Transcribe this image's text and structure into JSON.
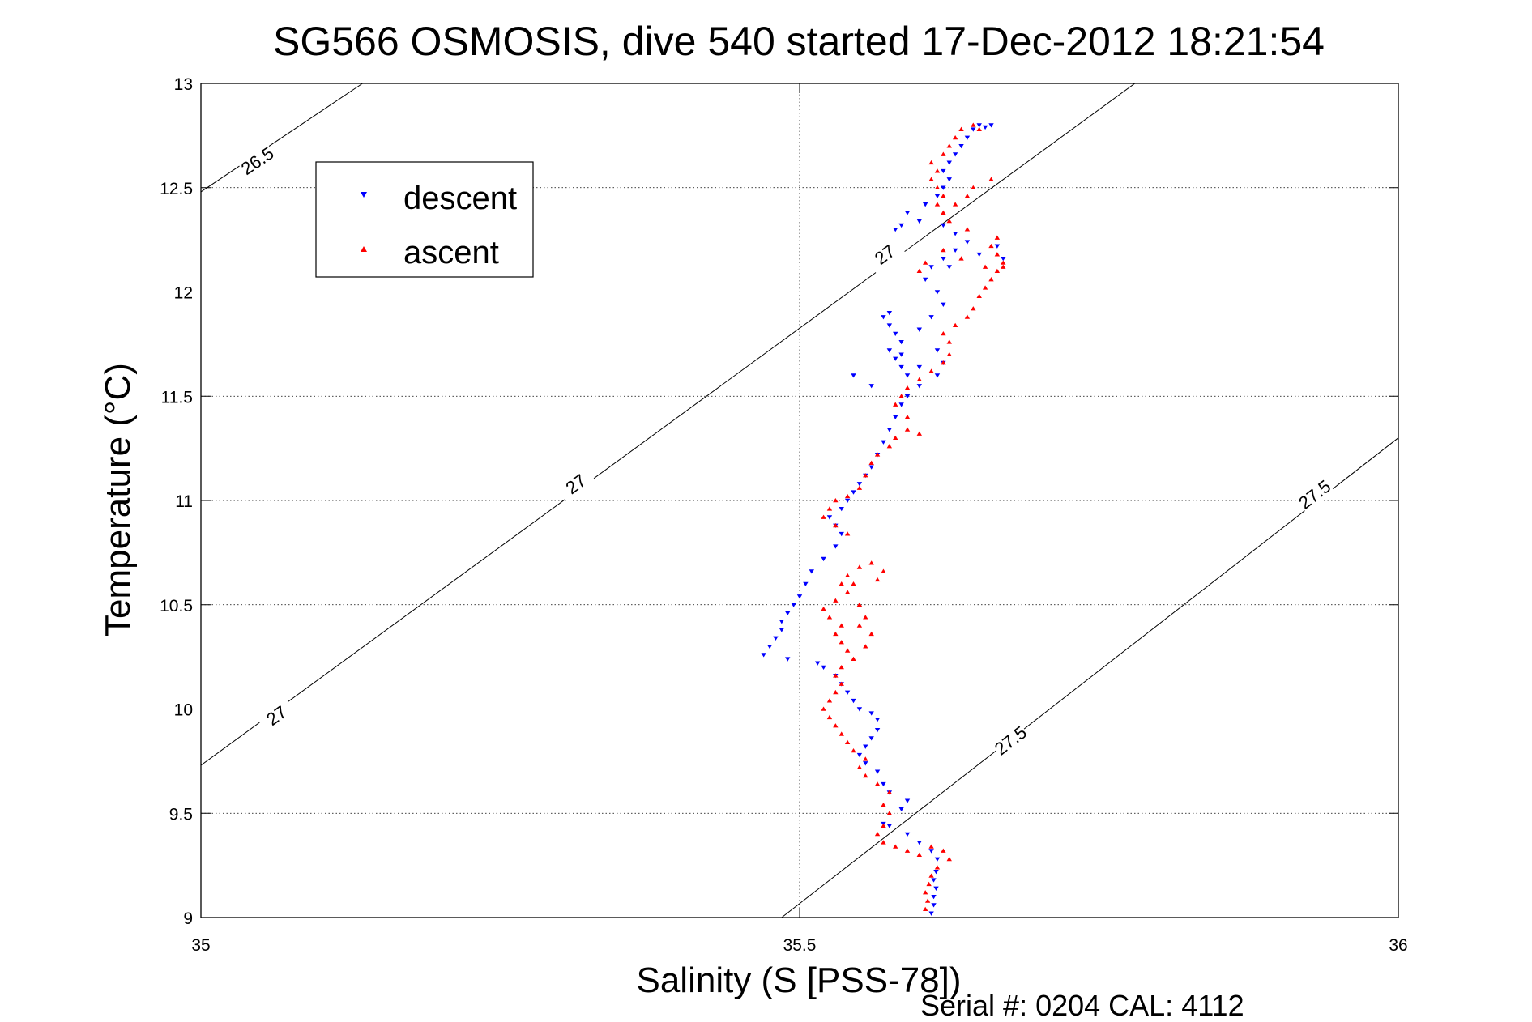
{
  "chart_data": {
    "type": "scatter",
    "title": "SG566 OSMOSIS, dive 540 started 17-Dec-2012 18:21:54",
    "xlabel": "Salinity (S [PSS-78])",
    "ylabel": "Temperature (°C)",
    "xlim": [
      35,
      36
    ],
    "ylim": [
      9,
      13
    ],
    "xticks": [
      "35",
      "35.5",
      "36"
    ],
    "yticks": [
      "9",
      "9.5",
      "10",
      "10.5",
      "11",
      "11.5",
      "12",
      "12.5",
      "13"
    ],
    "grid": true,
    "legend_position": "top-left",
    "footer": "Serial #: 0204  CAL: 4112",
    "series": [
      {
        "name": "descent",
        "color": "#0000ff",
        "marker": "triangle-down",
        "points": [
          [
            35.61,
            9.02
          ],
          [
            35.612,
            9.06
          ],
          [
            35.612,
            9.1
          ],
          [
            35.614,
            9.14
          ],
          [
            35.612,
            9.18
          ],
          [
            35.614,
            9.22
          ],
          [
            35.615,
            9.28
          ],
          [
            35.61,
            9.32
          ],
          [
            35.6,
            9.36
          ],
          [
            35.59,
            9.4
          ],
          [
            35.575,
            9.44
          ],
          [
            35.57,
            9.45
          ],
          [
            35.585,
            9.52
          ],
          [
            35.59,
            9.56
          ],
          [
            35.575,
            9.6
          ],
          [
            35.57,
            9.64
          ],
          [
            35.565,
            9.7
          ],
          [
            35.555,
            9.74
          ],
          [
            35.55,
            9.78
          ],
          [
            35.555,
            9.82
          ],
          [
            35.56,
            9.86
          ],
          [
            35.565,
            9.9
          ],
          [
            35.565,
            9.95
          ],
          [
            35.56,
            9.98
          ],
          [
            35.55,
            10.0
          ],
          [
            35.545,
            10.04
          ],
          [
            35.54,
            10.08
          ],
          [
            35.535,
            10.12
          ],
          [
            35.53,
            10.16
          ],
          [
            35.52,
            10.2
          ],
          [
            35.515,
            10.22
          ],
          [
            35.49,
            10.24
          ],
          [
            35.47,
            10.26
          ],
          [
            35.475,
            10.3
          ],
          [
            35.48,
            10.34
          ],
          [
            35.485,
            10.38
          ],
          [
            35.485,
            10.42
          ],
          [
            35.49,
            10.46
          ],
          [
            35.495,
            10.5
          ],
          [
            35.5,
            10.54
          ],
          [
            35.505,
            10.6
          ],
          [
            35.51,
            10.66
          ],
          [
            35.52,
            10.72
          ],
          [
            35.53,
            10.78
          ],
          [
            35.535,
            10.84
          ],
          [
            35.53,
            10.88
          ],
          [
            35.525,
            10.92
          ],
          [
            35.535,
            10.96
          ],
          [
            35.54,
            11.0
          ],
          [
            35.545,
            11.04
          ],
          [
            35.55,
            11.08
          ],
          [
            35.555,
            11.12
          ],
          [
            35.56,
            11.16
          ],
          [
            35.565,
            11.22
          ],
          [
            35.57,
            11.28
          ],
          [
            35.575,
            11.34
          ],
          [
            35.58,
            11.4
          ],
          [
            35.585,
            11.46
          ],
          [
            35.59,
            11.5
          ],
          [
            35.6,
            11.55
          ],
          [
            35.59,
            11.6
          ],
          [
            35.585,
            11.64
          ],
          [
            35.58,
            11.68
          ],
          [
            35.575,
            11.72
          ],
          [
            35.585,
            11.76
          ],
          [
            35.58,
            11.8
          ],
          [
            35.575,
            11.84
          ],
          [
            35.57,
            11.88
          ],
          [
            35.575,
            11.9
          ],
          [
            35.585,
            11.7
          ],
          [
            35.6,
            11.64
          ],
          [
            35.615,
            11.6
          ],
          [
            35.62,
            11.66
          ],
          [
            35.615,
            11.72
          ],
          [
            35.6,
            11.82
          ],
          [
            35.61,
            11.88
          ],
          [
            35.62,
            11.94
          ],
          [
            35.615,
            12.0
          ],
          [
            35.605,
            12.06
          ],
          [
            35.61,
            12.12
          ],
          [
            35.62,
            12.16
          ],
          [
            35.63,
            12.2
          ],
          [
            35.64,
            12.24
          ],
          [
            35.63,
            12.28
          ],
          [
            35.62,
            12.32
          ],
          [
            35.6,
            12.34
          ],
          [
            35.585,
            12.32
          ],
          [
            35.58,
            12.3
          ],
          [
            35.59,
            12.38
          ],
          [
            35.605,
            12.42
          ],
          [
            35.615,
            12.46
          ],
          [
            35.62,
            12.5
          ],
          [
            35.625,
            12.54
          ],
          [
            35.62,
            12.58
          ],
          [
            35.625,
            12.62
          ],
          [
            35.63,
            12.66
          ],
          [
            35.635,
            12.7
          ],
          [
            35.64,
            12.74
          ],
          [
            35.645,
            12.78
          ],
          [
            35.65,
            12.8
          ],
          [
            35.655,
            12.79
          ],
          [
            35.66,
            12.8
          ],
          [
            35.545,
            11.6
          ],
          [
            35.56,
            11.55
          ],
          [
            35.65,
            12.18
          ],
          [
            35.665,
            12.22
          ],
          [
            35.67,
            12.16
          ],
          [
            35.625,
            12.12
          ]
        ]
      },
      {
        "name": "ascent",
        "color": "#ff0000",
        "marker": "triangle-up",
        "points": [
          [
            35.605,
            9.04
          ],
          [
            35.607,
            9.08
          ],
          [
            35.605,
            9.12
          ],
          [
            35.608,
            9.16
          ],
          [
            35.61,
            9.2
          ],
          [
            35.615,
            9.24
          ],
          [
            35.625,
            9.28
          ],
          [
            35.62,
            9.32
          ],
          [
            35.61,
            9.34
          ],
          [
            35.6,
            9.3
          ],
          [
            35.59,
            9.32
          ],
          [
            35.58,
            9.34
          ],
          [
            35.57,
            9.36
          ],
          [
            35.565,
            9.4
          ],
          [
            35.57,
            9.44
          ],
          [
            35.575,
            9.5
          ],
          [
            35.57,
            9.54
          ],
          [
            35.575,
            9.6
          ],
          [
            35.565,
            9.64
          ],
          [
            35.555,
            9.68
          ],
          [
            35.55,
            9.72
          ],
          [
            35.555,
            9.76
          ],
          [
            35.545,
            9.8
          ],
          [
            35.54,
            9.84
          ],
          [
            35.535,
            9.88
          ],
          [
            35.53,
            9.92
          ],
          [
            35.525,
            9.96
          ],
          [
            35.52,
            10.0
          ],
          [
            35.525,
            10.04
          ],
          [
            35.53,
            10.08
          ],
          [
            35.535,
            10.12
          ],
          [
            35.53,
            10.16
          ],
          [
            35.535,
            10.2
          ],
          [
            35.545,
            10.24
          ],
          [
            35.54,
            10.28
          ],
          [
            35.535,
            10.32
          ],
          [
            35.53,
            10.36
          ],
          [
            35.535,
            10.4
          ],
          [
            35.525,
            10.44
          ],
          [
            35.52,
            10.48
          ],
          [
            35.53,
            10.52
          ],
          [
            35.54,
            10.56
          ],
          [
            35.535,
            10.6
          ],
          [
            35.54,
            10.64
          ],
          [
            35.55,
            10.68
          ],
          [
            35.56,
            10.7
          ],
          [
            35.57,
            10.66
          ],
          [
            35.565,
            10.62
          ],
          [
            35.545,
            10.6
          ],
          [
            35.55,
            10.5
          ],
          [
            35.555,
            10.44
          ],
          [
            35.55,
            10.4
          ],
          [
            35.56,
            10.36
          ],
          [
            35.555,
            10.3
          ],
          [
            35.53,
            10.88
          ],
          [
            35.52,
            10.92
          ],
          [
            35.525,
            10.96
          ],
          [
            35.53,
            11.0
          ],
          [
            35.54,
            10.84
          ],
          [
            35.54,
            11.02
          ],
          [
            35.55,
            11.06
          ],
          [
            35.555,
            11.12
          ],
          [
            35.56,
            11.18
          ],
          [
            35.565,
            11.22
          ],
          [
            35.575,
            11.26
          ],
          [
            35.58,
            11.3
          ],
          [
            35.59,
            11.34
          ],
          [
            35.6,
            11.32
          ],
          [
            35.59,
            11.4
          ],
          [
            35.58,
            11.46
          ],
          [
            35.585,
            11.5
          ],
          [
            35.59,
            11.54
          ],
          [
            35.6,
            11.58
          ],
          [
            35.61,
            11.62
          ],
          [
            35.62,
            11.66
          ],
          [
            35.625,
            11.7
          ],
          [
            35.625,
            11.76
          ],
          [
            35.62,
            11.8
          ],
          [
            35.63,
            11.84
          ],
          [
            35.64,
            11.88
          ],
          [
            35.645,
            11.92
          ],
          [
            35.65,
            11.98
          ],
          [
            35.655,
            12.02
          ],
          [
            35.66,
            12.06
          ],
          [
            35.665,
            12.1
          ],
          [
            35.67,
            12.14
          ],
          [
            35.665,
            12.18
          ],
          [
            35.66,
            12.22
          ],
          [
            35.665,
            12.26
          ],
          [
            35.64,
            12.3
          ],
          [
            35.625,
            12.34
          ],
          [
            35.62,
            12.38
          ],
          [
            35.615,
            12.42
          ],
          [
            35.62,
            12.46
          ],
          [
            35.615,
            12.5
          ],
          [
            35.61,
            12.54
          ],
          [
            35.615,
            12.58
          ],
          [
            35.61,
            12.62
          ],
          [
            35.62,
            12.66
          ],
          [
            35.625,
            12.7
          ],
          [
            35.63,
            12.74
          ],
          [
            35.635,
            12.78
          ],
          [
            35.645,
            12.8
          ],
          [
            35.65,
            12.78
          ],
          [
            35.66,
            12.54
          ],
          [
            35.645,
            12.5
          ],
          [
            35.64,
            12.46
          ],
          [
            35.63,
            12.42
          ],
          [
            35.6,
            12.1
          ],
          [
            35.605,
            12.14
          ],
          [
            35.62,
            12.2
          ],
          [
            35.635,
            12.16
          ],
          [
            35.655,
            12.12
          ],
          [
            35.67,
            12.12
          ]
        ]
      }
    ],
    "contours": [
      {
        "label": "26.5",
        "points": [
          [
            35.0,
            12.48
          ],
          [
            35.135,
            13.0
          ]
        ],
        "label_at": [
          [
            35.047,
            12.63
          ]
        ]
      },
      {
        "label": "27",
        "points": [
          [
            35.0,
            9.73
          ],
          [
            35.78,
            13.0
          ]
        ],
        "label_at": [
          [
            35.063,
            9.97
          ],
          [
            35.313,
            11.08
          ],
          [
            35.571,
            12.18
          ]
        ]
      },
      {
        "label": "27.5",
        "points": [
          [
            35.485,
            9.0
          ],
          [
            36.0,
            11.3
          ]
        ],
        "label_at": [
          [
            35.676,
            9.85
          ],
          [
            35.93,
            11.03
          ]
        ]
      }
    ]
  }
}
